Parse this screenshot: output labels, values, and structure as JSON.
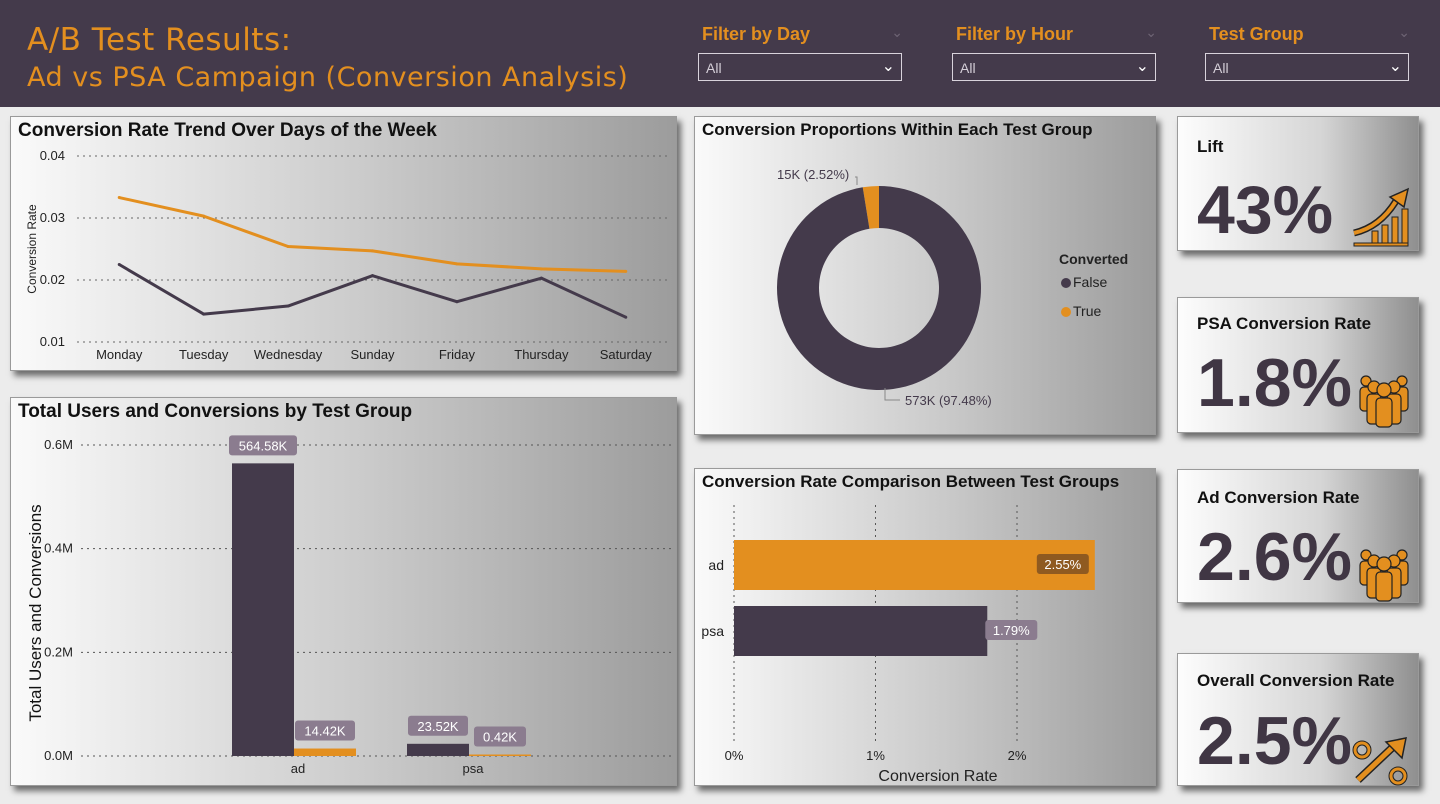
{
  "header": {
    "title_line1": "A/B Test Results:",
    "title_line2": "Ad vs PSA Campaign (Conversion Analysis)"
  },
  "filters": [
    {
      "label": "Filter by Day",
      "value": "All"
    },
    {
      "label": "Filter by Hour",
      "value": "All"
    },
    {
      "label": "Test Group",
      "value": "All"
    }
  ],
  "colors": {
    "accent": "#e38f1f",
    "dark": "#443a4b",
    "header_bg": "#443a4b"
  },
  "line_chart": {
    "title": "Conversion Rate Trend Over Days of the Week",
    "ylabel": "Conversion Rate",
    "yticks": [
      "0.04",
      "0.03",
      "0.02",
      "0.01"
    ]
  },
  "donut_chart": {
    "title": "Conversion Proportions Within Each Test Group",
    "legend_title": "Converted",
    "legend_items": [
      "False",
      "True"
    ],
    "label_true": "15K (2.52%)",
    "label_false": "573K (97.48%)"
  },
  "bar_chart": {
    "title": "Total Users and Conversions by Test Group",
    "ylabel": "Total Users and Conversions",
    "yticks": [
      "0.6M",
      "0.4M",
      "0.2M",
      "0.0M"
    ],
    "data_labels": [
      "564.58K",
      "14.42K",
      "23.52K",
      "0.42K"
    ]
  },
  "hbar_chart": {
    "title": "Conversion Rate Comparison Between Test Groups",
    "xlabel": "Conversion Rate",
    "xticks": [
      "0%",
      "1%",
      "2%"
    ],
    "data_labels": [
      "2.55%",
      "1.79%"
    ]
  },
  "kpis": [
    {
      "label": "Lift",
      "value": "43%",
      "icon": "growth-arrow-icon"
    },
    {
      "label": "PSA Conversion Rate",
      "value": "1.8%",
      "icon": "people-group-icon"
    },
    {
      "label": "Ad Conversion Rate",
      "value": "2.6%",
      "icon": "people-group-icon"
    },
    {
      "label": "Overall Conversion Rate",
      "value": "2.5%",
      "icon": "percent-arrow-icon"
    }
  ],
  "chart_data": [
    {
      "type": "line",
      "title": "Conversion Rate Trend Over Days of the Week",
      "ylabel": "Conversion Rate",
      "categories": [
        "Monday",
        "Tuesday",
        "Wednesday",
        "Sunday",
        "Friday",
        "Thursday",
        "Saturday"
      ],
      "series": [
        {
          "color": "#e38f1f",
          "values": [
            0.0333,
            0.0303,
            0.0254,
            0.0247,
            0.0226,
            0.0218,
            0.0214
          ]
        },
        {
          "color": "#443a4b",
          "values": [
            0.0225,
            0.0145,
            0.0158,
            0.0207,
            0.0165,
            0.0203,
            0.014
          ]
        }
      ],
      "ylim": [
        0.01,
        0.04
      ],
      "grid": true
    },
    {
      "type": "pie",
      "title": "Conversion Proportions Within Each Test Group",
      "legend_title": "Converted",
      "slices": [
        {
          "name": "False",
          "value": 573000,
          "percent": 97.48,
          "color": "#443a4b"
        },
        {
          "name": "True",
          "value": 15000,
          "percent": 2.52,
          "color": "#e38f1f"
        }
      ],
      "legend": "right"
    },
    {
      "type": "bar",
      "title": "Total Users and Conversions by Test Group",
      "ylabel": "Total Users and Conversions",
      "categories": [
        "ad",
        "psa"
      ],
      "series": [
        {
          "color": "#443a4b",
          "values": [
            564580,
            23520
          ]
        },
        {
          "color": "#e38f1f",
          "values": [
            14420,
            420
          ]
        }
      ],
      "ylim": [
        0,
        600000
      ],
      "grid": true
    },
    {
      "type": "bar",
      "orientation": "horizontal",
      "title": "Conversion Rate Comparison Between Test Groups",
      "xlabel": "Conversion Rate",
      "categories": [
        "ad",
        "psa"
      ],
      "values": [
        2.55,
        1.79
      ],
      "colors": [
        "#e38f1f",
        "#443a4b"
      ],
      "xlim": [
        0,
        2.55
      ],
      "grid": true
    }
  ]
}
